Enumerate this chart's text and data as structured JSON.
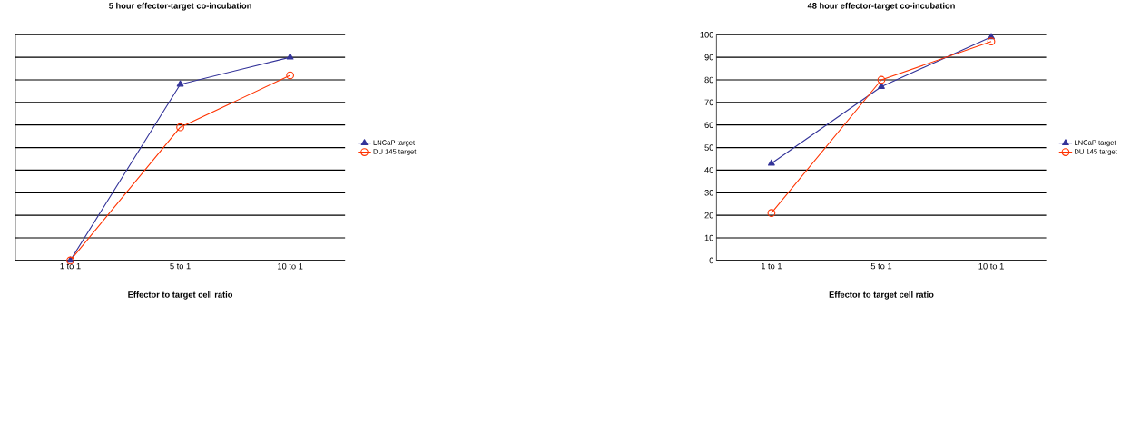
{
  "chart_data": [
    {
      "type": "line",
      "title": "5 hour effector-target co-incubation",
      "xlabel": "Effector to target cell ratio",
      "categories": [
        "1 to 1",
        "5 to 1",
        "10 to 1"
      ],
      "series": [
        {
          "name": "LNCaP target",
          "color": "#333399",
          "marker": "triangle",
          "values": [
            0,
            78,
            90
          ]
        },
        {
          "name": "DU 145 target",
          "color": "#ff3300",
          "marker": "circle",
          "values": [
            0,
            59,
            82
          ]
        }
      ],
      "ylim": [
        0,
        100
      ],
      "yticks": [
        0,
        10,
        20,
        30,
        40,
        50,
        60,
        70,
        80,
        90,
        100
      ],
      "tick_labels": "x",
      "grid": "y",
      "legend": "right"
    },
    {
      "type": "line",
      "title": "48 hour effector-target co-incubation",
      "xlabel": "Effector to target cell ratio",
      "categories": [
        "1 to 1",
        "5 to 1",
        "10 to 1"
      ],
      "series": [
        {
          "name": "LNCaP target",
          "color": "#333399",
          "marker": "triangle",
          "values": [
            43,
            77,
            99
          ]
        },
        {
          "name": "DU 145 target",
          "color": "#ff3300",
          "marker": "circle",
          "values": [
            21,
            80,
            97
          ]
        }
      ],
      "ylim": [
        0,
        100
      ],
      "yticks": [
        0,
        10,
        20,
        30,
        40,
        50,
        60,
        70,
        80,
        90,
        100
      ],
      "grid": "y",
      "legend": "right"
    }
  ]
}
